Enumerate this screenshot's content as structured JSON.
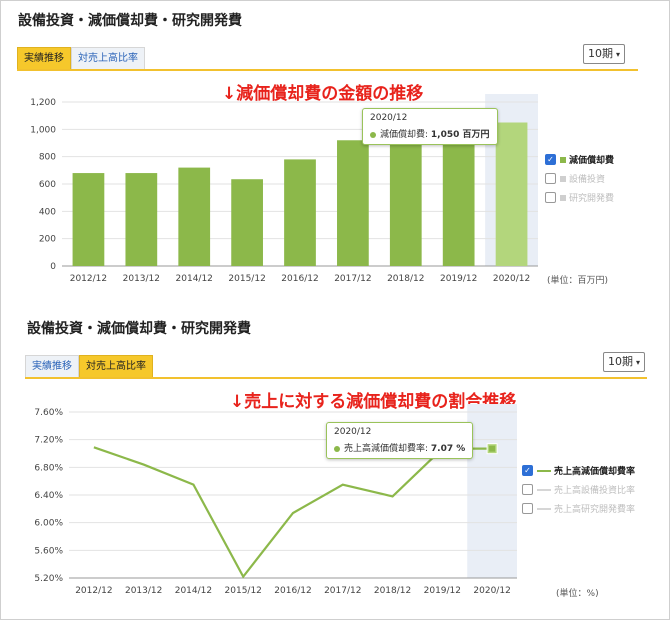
{
  "section1": {
    "title": "設備投資・減価償却費・研究開発費",
    "tabs": [
      "実績推移",
      "対売上高比率"
    ],
    "active_tab": 0,
    "period": "10期",
    "banner": "↓減価償却費の金額の推移",
    "unit": "(単位：百万円)",
    "legend": [
      {
        "label": "減価償却費",
        "checked": true
      },
      {
        "label": "設備投資",
        "checked": false
      },
      {
        "label": "研究開発費",
        "checked": false
      }
    ],
    "tooltip": {
      "date": "2020/12",
      "label": "減価償却費:",
      "value": "1,050 百万円"
    }
  },
  "section2": {
    "title": "設備投資・減価償却費・研究開発費",
    "tabs": [
      "実績推移",
      "対売上高比率"
    ],
    "active_tab": 1,
    "period": "10期",
    "banner": "↓売上に対する減価償却費の割合推移",
    "unit": "(単位：%)",
    "legend": [
      {
        "label": "売上高減価償却費率",
        "checked": true
      },
      {
        "label": "売上高設備投資比率",
        "checked": false
      },
      {
        "label": "売上高研究開発費率",
        "checked": false
      }
    ],
    "tooltip": {
      "date": "2020/12",
      "label": "売上高減価償却費率:",
      "value": "7.07 %"
    }
  },
  "colors": {
    "bar": "#8cb84a",
    "bar_highlight": "#b3d67c",
    "line": "#8cb84a",
    "highlight_band": "#e9eef6",
    "banner": "#e8231c",
    "active_tab": "#f6c82b"
  },
  "chart_data": [
    {
      "type": "bar",
      "categories": [
        "2012/12",
        "2013/12",
        "2014/12",
        "2015/12",
        "2016/12",
        "2017/12",
        "2018/12",
        "2019/12",
        "2020/12"
      ],
      "series": [
        {
          "name": "減価償却費",
          "values": [
            680,
            680,
            720,
            635,
            780,
            920,
            1000,
            1070,
            1050
          ]
        }
      ],
      "ylim": [
        0,
        1200
      ],
      "yticks": [
        0,
        200,
        400,
        600,
        800,
        1000,
        1200
      ],
      "ytick_labels": [
        "0",
        "200",
        "400",
        "600",
        "800",
        "1,000",
        "1,200"
      ],
      "grid": true,
      "highlight": "2020/12"
    },
    {
      "type": "line",
      "categories": [
        "2012/12",
        "2013/12",
        "2014/12",
        "2015/12",
        "2016/12",
        "2017/12",
        "2018/12",
        "2019/12",
        "2020/12"
      ],
      "series": [
        {
          "name": "売上高減価償却費率",
          "values": [
            7.09,
            6.84,
            6.55,
            5.22,
            6.14,
            6.55,
            6.38,
            7.07,
            7.07
          ]
        }
      ],
      "ylim": [
        5.2,
        7.6
      ],
      "yticks": [
        5.2,
        5.6,
        6.0,
        6.4,
        6.8,
        7.2,
        7.6
      ],
      "ytick_labels": [
        "5.20%",
        "5.60%",
        "6.00%",
        "6.40%",
        "6.80%",
        "7.20%",
        "7.60%"
      ],
      "grid": true,
      "highlight": "2020/12"
    }
  ]
}
